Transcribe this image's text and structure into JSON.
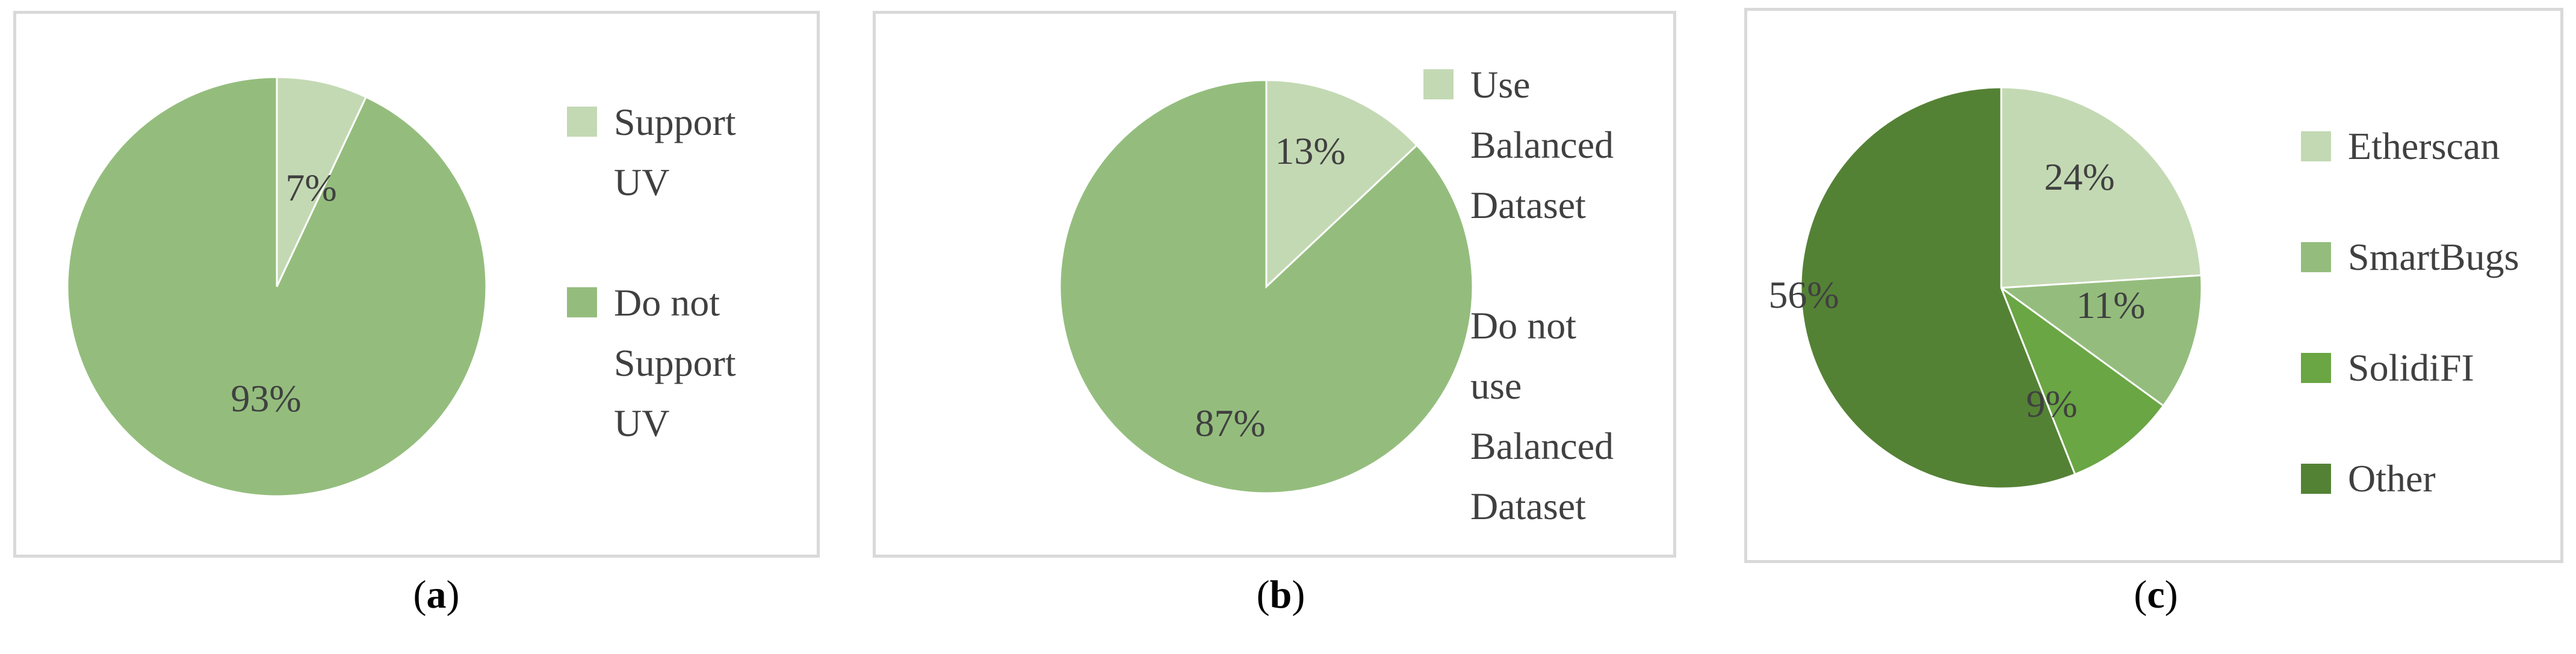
{
  "chart_data": [
    {
      "type": "pie",
      "caption_letter": "a",
      "slices": [
        {
          "label": "Support UV",
          "value": 7,
          "text": "7%",
          "color": "#c3d9b3"
        },
        {
          "label": "Do not Support UV",
          "value": 93,
          "text": "93%",
          "color": "#94bd7d"
        }
      ],
      "legend": [
        {
          "label": "Support UV",
          "lines": [
            "Support",
            "UV"
          ],
          "color": "#c3d9b3"
        },
        {
          "label": "Do not Support UV",
          "lines": [
            "Do not",
            "Support",
            "UV"
          ],
          "color": "#94bd7d"
        }
      ]
    },
    {
      "type": "pie",
      "caption_letter": "b",
      "slices": [
        {
          "label": "Use Balanced Dataset",
          "value": 13,
          "text": "13%",
          "color": "#c3d9b3"
        },
        {
          "label": "Do not use Balanced Dataset",
          "value": 87,
          "text": "87%",
          "color": "#94bd7d"
        }
      ],
      "legend": [
        {
          "label": "Use Balanced Dataset",
          "lines": [
            "Use",
            "Balanced",
            "Dataset"
          ],
          "color": "#c3d9b3"
        },
        {
          "label": "Do not use Balanced Dataset",
          "lines": [
            "Do not",
            "use",
            "Balanced",
            "Dataset"
          ],
          "color": "#94bd7d"
        }
      ]
    },
    {
      "type": "pie",
      "caption_letter": "c",
      "slices": [
        {
          "label": "Etherscan",
          "value": 24,
          "text": "24%",
          "color": "#c3d9b3"
        },
        {
          "label": "SmartBugs",
          "value": 11,
          "text": "11%",
          "color": "#94bd7d"
        },
        {
          "label": "SolidiFI",
          "value": 9,
          "text": "9%",
          "color": "#6aa644"
        },
        {
          "label": "Other",
          "value": 56,
          "text": "56%",
          "color": "#548235"
        }
      ],
      "legend": [
        {
          "label": "Etherscan",
          "lines": [
            "Etherscan"
          ],
          "color": "#c3d9b3"
        },
        {
          "label": "SmartBugs",
          "lines": [
            "SmartBugs"
          ],
          "color": "#94bd7d"
        },
        {
          "label": "SolidiFI",
          "lines": [
            "SolidiFI"
          ],
          "color": "#6aa644"
        },
        {
          "label": "Other",
          "lines": [
            "Other"
          ],
          "color": "#548235"
        }
      ]
    }
  ]
}
